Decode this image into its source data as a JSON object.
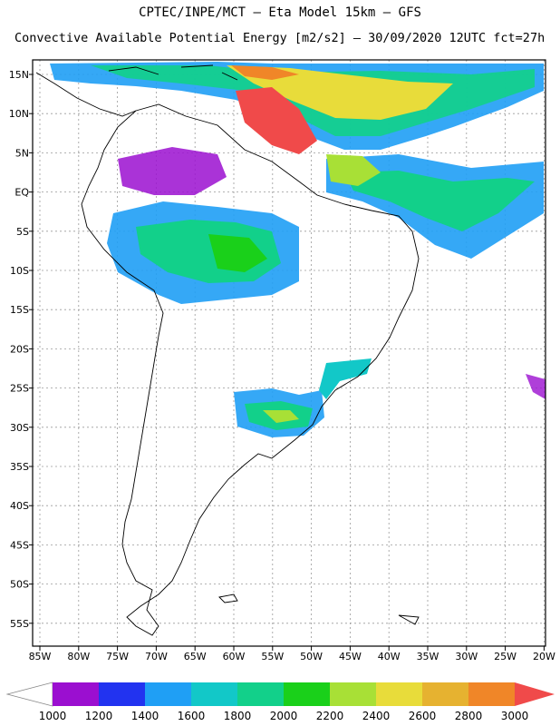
{
  "header": {
    "line1": "CPTEC/INPE/MCT –  Eta Model 15km – GFS",
    "line2": "Convective Available Potential Energy [m2/s2] – 30/09/2020 12UTC fct=27h"
  },
  "map": {
    "lat_labels": [
      "15N",
      "10N",
      "5N",
      "EQ",
      "5S",
      "10S",
      "15S",
      "20S",
      "25S",
      "30S",
      "35S",
      "40S",
      "45S",
      "50S",
      "55S"
    ],
    "lon_labels": [
      "85W",
      "80W",
      "75W",
      "70W",
      "65W",
      "60W",
      "55W",
      "50W",
      "45W",
      "40W",
      "35W",
      "30W",
      "25W",
      "20W"
    ]
  },
  "colorbar": {
    "labels": [
      "1000",
      "1200",
      "1400",
      "1600",
      "1800",
      "2000",
      "2200",
      "2400",
      "2600",
      "2800",
      "3000"
    ],
    "colors": [
      "#9b0fd0",
      "#2233f0",
      "#1f9ff5",
      "#12c8c8",
      "#12d08a",
      "#1ad01a",
      "#a8e036",
      "#e8dc3a",
      "#e6b230",
      "#f08628",
      "#f04a4a"
    ],
    "under_color": "#ffffff",
    "over_color": "#f04a4a"
  }
}
